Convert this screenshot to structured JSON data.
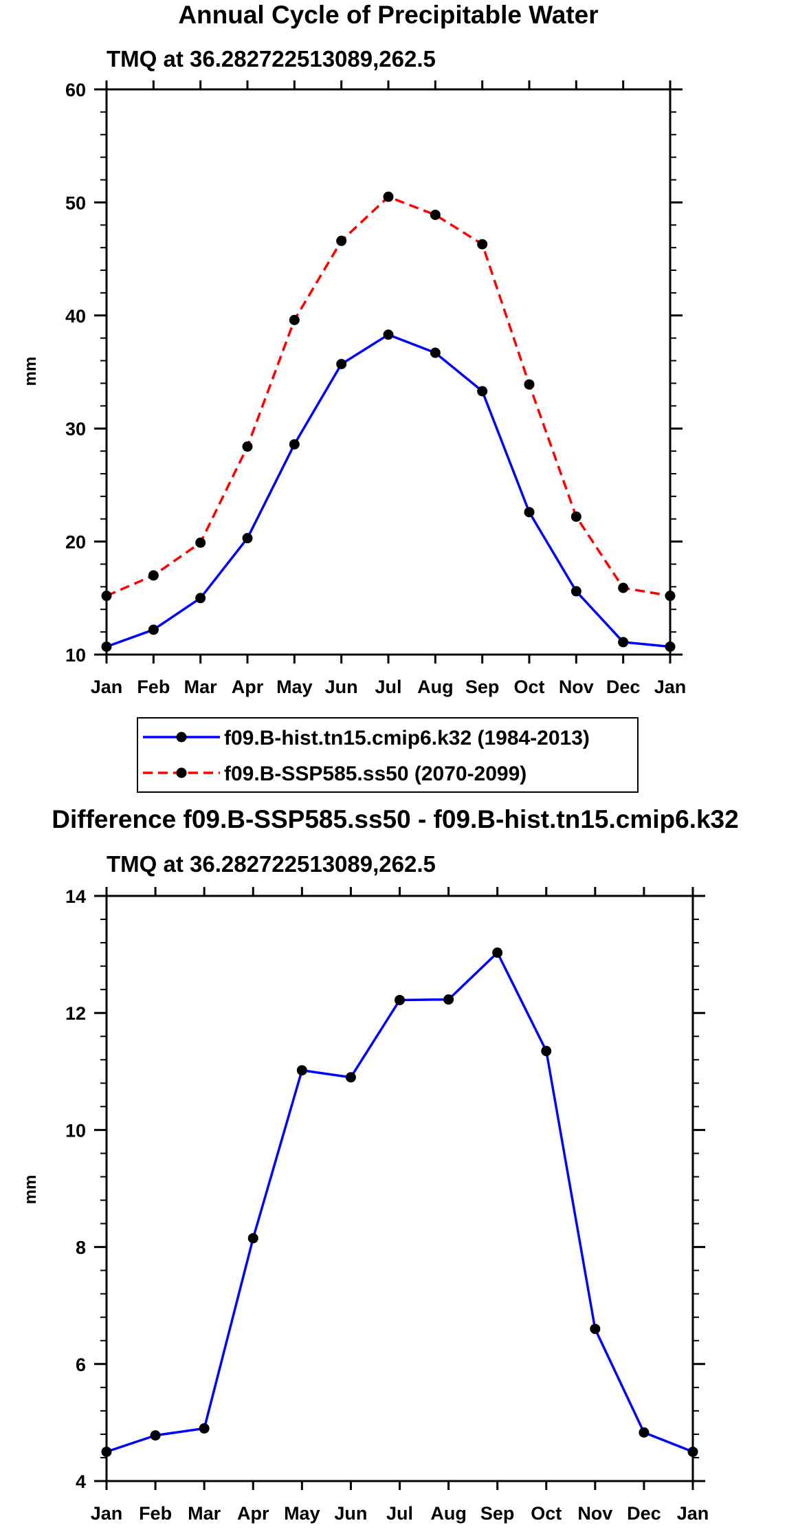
{
  "chart_data": [
    {
      "type": "line",
      "title": "Annual Cycle of Precipitable Water",
      "subtitle": "TMQ at 36.282722513089,262.5",
      "ylabel": "mm",
      "xlabel": "",
      "categories": [
        "Jan",
        "Feb",
        "Mar",
        "Apr",
        "May",
        "Jun",
        "Jul",
        "Aug",
        "Sep",
        "Oct",
        "Nov",
        "Dec",
        "Jan"
      ],
      "ylim": [
        10,
        60
      ],
      "yticks": [
        10,
        20,
        30,
        40,
        50,
        60
      ],
      "series": [
        {
          "name": "f09.B-hist.tn15.cmip6.k32 (1984-2013)",
          "color": "#0000ff",
          "dash": "solid",
          "values": [
            10.7,
            12.2,
            15.0,
            20.3,
            28.6,
            35.7,
            38.3,
            36.7,
            33.3,
            22.6,
            15.6,
            11.1,
            10.7
          ]
        },
        {
          "name": "f09.B-SSP585.ss50 (2070-2099)",
          "color": "#ff0000",
          "dash": "dashed",
          "values": [
            15.2,
            17.0,
            19.9,
            28.4,
            39.6,
            46.6,
            50.5,
            48.9,
            46.3,
            33.9,
            22.2,
            15.9,
            15.2
          ]
        }
      ],
      "legend": "bottom"
    },
    {
      "type": "line",
      "title": "Difference f09.B-SSP585.ss50 - f09.B-hist.tn15.cmip6.k32",
      "subtitle": "TMQ at 36.282722513089,262.5",
      "ylabel": "mm",
      "xlabel": "",
      "categories": [
        "Jan",
        "Feb",
        "Mar",
        "Apr",
        "May",
        "Jun",
        "Jul",
        "Aug",
        "Sep",
        "Oct",
        "Nov",
        "Dec",
        "Jan"
      ],
      "ylim": [
        4,
        14
      ],
      "yticks": [
        4,
        6,
        8,
        10,
        12,
        14
      ],
      "series": [
        {
          "name": "difference",
          "color": "#0000ff",
          "dash": "solid",
          "values": [
            4.5,
            4.78,
            4.9,
            8.15,
            11.02,
            10.9,
            12.22,
            12.23,
            13.03,
            11.35,
            6.6,
            4.83,
            4.5
          ]
        }
      ]
    }
  ]
}
